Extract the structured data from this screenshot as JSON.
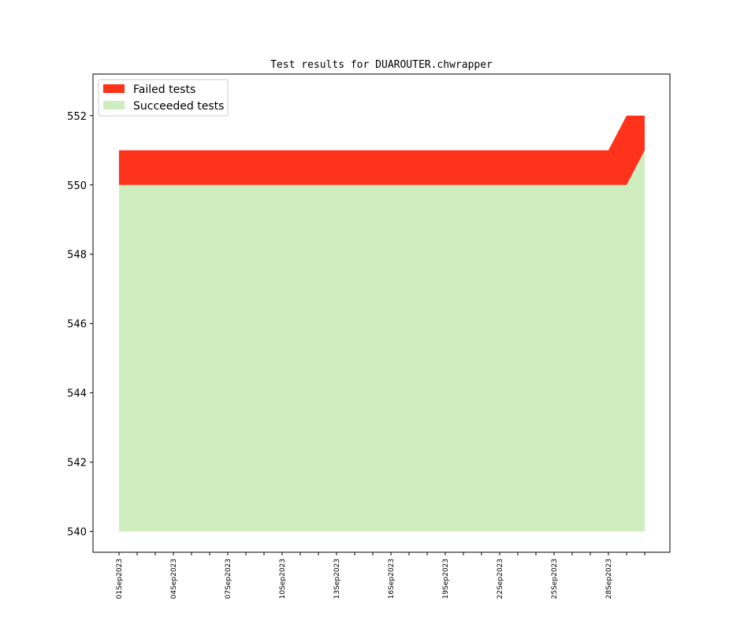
{
  "chart_data": {
    "type": "area",
    "title": "Test results for DUAROUTER.chwrapper",
    "xlabel": "",
    "ylabel": "",
    "dates": [
      "01Sep2023",
      "02Sep2023",
      "03Sep2023",
      "04Sep2023",
      "05Sep2023",
      "06Sep2023",
      "07Sep2023",
      "08Sep2023",
      "09Sep2023",
      "10Sep2023",
      "11Sep2023",
      "12Sep2023",
      "13Sep2023",
      "14Sep2023",
      "15Sep2023",
      "16Sep2023",
      "17Sep2023",
      "18Sep2023",
      "19Sep2023",
      "20Sep2023",
      "21Sep2023",
      "22Sep2023",
      "23Sep2023",
      "24Sep2023",
      "25Sep2023",
      "26Sep2023",
      "27Sep2023",
      "28Sep2023",
      "29Sep2023",
      "30Sep2023"
    ],
    "xtick_labels": [
      "01Sep2023",
      "04Sep2023",
      "07Sep2023",
      "10Sep2023",
      "13Sep2023",
      "16Sep2023",
      "19Sep2023",
      "22Sep2023",
      "25Sep2023",
      "28Sep2023"
    ],
    "series": [
      {
        "name": "Succeeded tests",
        "color": "#cfedbf",
        "values": [
          550,
          550,
          550,
          550,
          550,
          550,
          550,
          550,
          550,
          550,
          550,
          550,
          550,
          550,
          550,
          550,
          550,
          550,
          550,
          550,
          550,
          550,
          550,
          550,
          550,
          550,
          550,
          550,
          550,
          551
        ]
      },
      {
        "name": "Failed tests",
        "color": "#ff331c",
        "values": [
          1,
          1,
          1,
          1,
          1,
          1,
          1,
          1,
          1,
          1,
          1,
          1,
          1,
          1,
          1,
          1,
          1,
          1,
          1,
          1,
          1,
          1,
          1,
          1,
          1,
          1,
          1,
          1,
          2,
          1
        ]
      }
    ],
    "area_baseline": 540,
    "ylim": [
      539.4,
      553.2
    ],
    "yticks": [
      540,
      542,
      544,
      546,
      548,
      550,
      552
    ],
    "legend_position": "upper-left",
    "grid": false
  }
}
